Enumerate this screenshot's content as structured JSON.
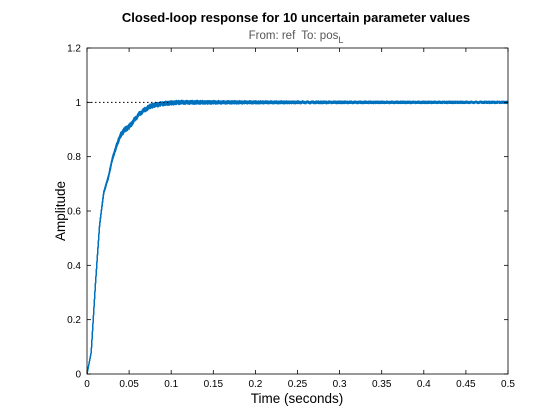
{
  "chart_data": {
    "type": "line",
    "title": "Closed-loop response for 10 uncertain parameter values",
    "subtitle": {
      "from_label": "From: ref",
      "to_label": "To: pos",
      "to_subscript": "L"
    },
    "xlabel": "Time (seconds)",
    "ylabel": "Amplitude",
    "xlim": [
      0,
      0.5
    ],
    "ylim": [
      0,
      1.2
    ],
    "x_ticks": [
      "0",
      "0.05",
      "0.1",
      "0.15",
      "0.2",
      "0.25",
      "0.3",
      "0.35",
      "0.4",
      "0.45",
      "0.5"
    ],
    "y_ticks": [
      "0",
      "0.2",
      "0.4",
      "0.6",
      "0.8",
      "1",
      "1.2"
    ],
    "grid": false,
    "reference_line": {
      "y": 1,
      "x_range": [
        0,
        0.1
      ],
      "style": "dotted",
      "color": "#000000"
    },
    "series_color": "#0072BD",
    "series_count": 10,
    "base_response": {
      "t": [
        0,
        0.005,
        0.01,
        0.015,
        0.02,
        0.025,
        0.03,
        0.035,
        0.04,
        0.045,
        0.05,
        0.055,
        0.06,
        0.065,
        0.07,
        0.075,
        0.08,
        0.09,
        0.1,
        0.11,
        0.12,
        0.13,
        0.15,
        0.2,
        0.3,
        0.4,
        0.5
      ],
      "y": [
        0,
        0.08,
        0.33,
        0.55,
        0.67,
        0.72,
        0.79,
        0.84,
        0.88,
        0.9,
        0.91,
        0.93,
        0.95,
        0.965,
        0.975,
        0.985,
        0.99,
        0.995,
        0.998,
        1.0,
        1.0,
        1.0,
        1.0,
        1.0,
        1.0,
        1.0,
        1.0
      ]
    },
    "variations": [
      {
        "amp": 0.01,
        "freq": 170,
        "phase": 0.0
      },
      {
        "amp": 0.012,
        "freq": 180,
        "phase": 0.6
      },
      {
        "amp": 0.008,
        "freq": 195,
        "phase": 1.2
      },
      {
        "amp": 0.014,
        "freq": 160,
        "phase": 1.8
      },
      {
        "amp": 0.009,
        "freq": 210,
        "phase": 2.4
      },
      {
        "amp": 0.011,
        "freq": 175,
        "phase": 3.0
      },
      {
        "amp": 0.013,
        "freq": 190,
        "phase": 3.6
      },
      {
        "amp": 0.007,
        "freq": 165,
        "phase": 4.2
      },
      {
        "amp": 0.012,
        "freq": 200,
        "phase": 4.8
      },
      {
        "amp": 0.01,
        "freq": 185,
        "phase": 5.4
      }
    ]
  }
}
